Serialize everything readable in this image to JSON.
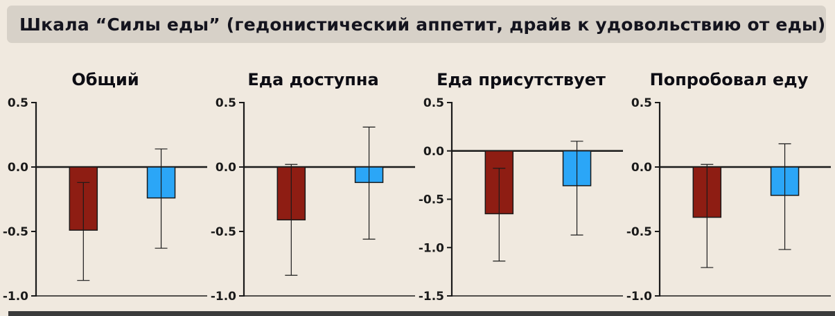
{
  "header": {
    "title": "Шкала “Силы еды” (гедонистический аппетит, драйв к удовольствию от еды)"
  },
  "colors": {
    "page_bg": "#f0e9df",
    "header_bg": "#d7d1c8",
    "header_text": "#14141e",
    "axis": "#1a1a1a",
    "bar_dark_red": "#8e1d13",
    "bar_blue": "#2ba6f7",
    "bottom_strip": "#3b3b3b"
  },
  "chart_data": [
    {
      "type": "bar",
      "title": "Общий",
      "ylim": [
        -1.0,
        0.5
      ],
      "yticks": [
        0.5,
        0.0,
        -0.5,
        -1.0
      ],
      "grid": false,
      "legend": "none",
      "series": [
        {
          "color": "#8e1d13",
          "value": -0.49,
          "err_top": -0.12,
          "err_bottom": -0.88
        },
        {
          "color": "#2ba6f7",
          "value": -0.24,
          "err_top": 0.14,
          "err_bottom": -0.63
        }
      ]
    },
    {
      "type": "bar",
      "title": "Еда доступна",
      "ylim": [
        -1.0,
        0.5
      ],
      "yticks": [
        0.5,
        0.0,
        -0.5,
        -1.0
      ],
      "grid": false,
      "legend": "none",
      "series": [
        {
          "color": "#8e1d13",
          "value": -0.41,
          "err_top": 0.02,
          "err_bottom": -0.84
        },
        {
          "color": "#2ba6f7",
          "value": -0.12,
          "err_top": 0.31,
          "err_bottom": -0.56
        }
      ]
    },
    {
      "type": "bar",
      "title": "Еда присутствует",
      "ylim": [
        -1.5,
        0.5
      ],
      "yticks": [
        0.5,
        0.0,
        -0.5,
        -1.0,
        -1.5
      ],
      "grid": false,
      "legend": "none",
      "series": [
        {
          "color": "#8e1d13",
          "value": -0.65,
          "err_top": -0.18,
          "err_bottom": -1.14
        },
        {
          "color": "#2ba6f7",
          "value": -0.36,
          "err_top": 0.1,
          "err_bottom": -0.87
        }
      ]
    },
    {
      "type": "bar",
      "title": "Попробовал еду",
      "ylim": [
        -1.0,
        0.5
      ],
      "yticks": [
        0.5,
        0.0,
        -0.5,
        -1.0
      ],
      "grid": false,
      "legend": "none",
      "series": [
        {
          "color": "#8e1d13",
          "value": -0.39,
          "err_top": 0.02,
          "err_bottom": -0.78
        },
        {
          "color": "#2ba6f7",
          "value": -0.22,
          "err_top": 0.18,
          "err_bottom": -0.64
        }
      ]
    }
  ]
}
